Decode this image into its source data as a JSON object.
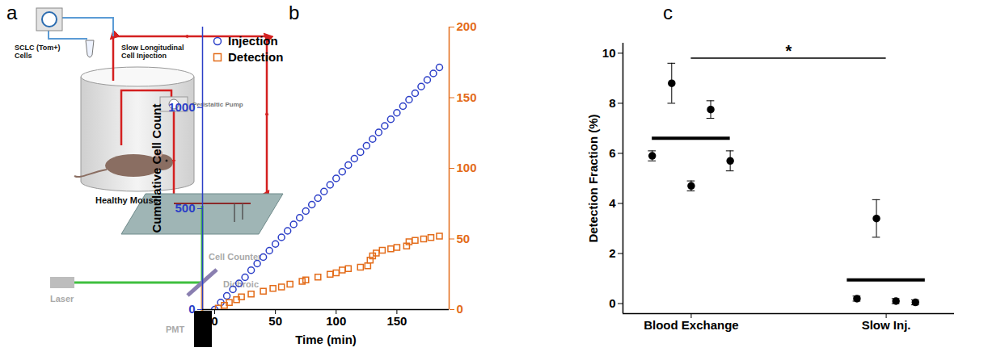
{
  "diagram": {
    "panel_label": "a",
    "labels": {
      "cells": [
        "SCLC (Tom+)",
        "Cells"
      ],
      "injection": [
        "Slow Longitudinal",
        "Cell Injection"
      ],
      "mouse": "Healthy Mouse",
      "pump": "Peristaltic Pump",
      "counter": "Cell Counter",
      "laser": "Laser",
      "dichroic": "Dichroic",
      "detector": "PMT"
    }
  },
  "chart_data": [
    {
      "panel_label": "b",
      "type": "scatter",
      "x_label": "Time (min)",
      "y_label": "Cumulative Cell Count",
      "xlim": [
        -10,
        193
      ],
      "xticks": [
        0,
        50,
        100,
        150
      ],
      "ylim": [
        0,
        1400
      ],
      "yticks": [
        0,
        500,
        1000
      ],
      "y2lim": [
        0,
        200
      ],
      "y2ticks": [
        0,
        50,
        100,
        150,
        200
      ],
      "legend": "top-left",
      "series": [
        {
          "name": "Injection",
          "color": "#2b3ec7",
          "marker": "circle",
          "x": [
            0,
            5,
            10,
            15,
            20,
            25,
            30,
            35,
            40,
            45,
            50,
            55,
            60,
            65,
            70,
            75,
            80,
            85,
            90,
            95,
            100,
            105,
            110,
            115,
            120,
            125,
            130,
            135,
            140,
            145,
            150,
            155,
            160,
            165,
            170,
            175,
            180,
            185
          ],
          "values": [
            0,
            35,
            68,
            100,
            130,
            160,
            195,
            228,
            260,
            292,
            325,
            358,
            390,
            422,
            455,
            488,
            520,
            552,
            585,
            618,
            650,
            683,
            716,
            748,
            780,
            812,
            845,
            878,
            910,
            943,
            975,
            1008,
            1040,
            1072,
            1105,
            1138,
            1170,
            1200
          ]
        },
        {
          "name": "Detection",
          "color": "#e36c1a",
          "marker": "square",
          "axis": "y2",
          "x": [
            3,
            8,
            12,
            18,
            22,
            30,
            40,
            48,
            55,
            62,
            72,
            75,
            85,
            95,
            100,
            105,
            110,
            120,
            126,
            128,
            130,
            133,
            138,
            145,
            150,
            158,
            160,
            165,
            172,
            178,
            185
          ],
          "values": [
            1,
            3,
            5,
            7,
            9,
            11,
            13,
            15,
            16,
            18,
            20,
            21,
            23,
            25,
            26,
            28,
            29,
            30,
            31,
            35,
            38,
            40,
            42,
            43,
            44,
            45,
            48,
            49,
            50,
            51,
            52
          ]
        }
      ]
    },
    {
      "panel_label": "c",
      "type": "scatter",
      "y_label": "Detection Fraction (%)",
      "categories": [
        "Blood Exchange",
        "Slow Inj."
      ],
      "ylim": [
        -0.4,
        10.4
      ],
      "yticks": [
        0,
        2,
        4,
        6,
        8,
        10
      ],
      "color": "#000000",
      "groups": [
        {
          "values": [
            5.9,
            8.8,
            4.7,
            7.75,
            5.7
          ],
          "errors": [
            0.2,
            0.8,
            0.2,
            0.35,
            0.4
          ],
          "mean": 6.6
        },
        {
          "values": [
            0.2,
            3.4,
            0.1,
            0.05
          ],
          "errors": [
            0.1,
            0.75,
            0.1,
            0.1
          ],
          "mean": 0.95
        }
      ],
      "annotations": [
        {
          "text": "*",
          "from": "Blood Exchange",
          "to": "Slow Inj.",
          "y": 9.8
        }
      ]
    }
  ]
}
